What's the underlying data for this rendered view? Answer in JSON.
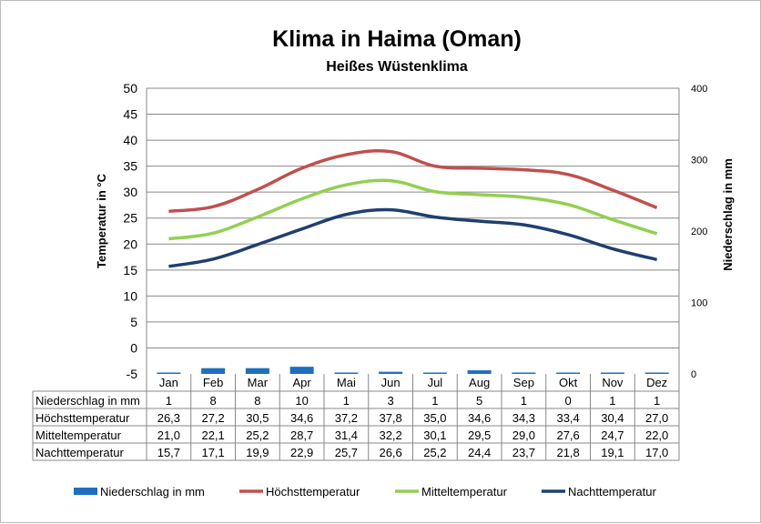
{
  "chart_data": {
    "type": "bar+line",
    "title": "Klima in Haima (Oman)",
    "subtitle": "Heißes Wüstenklima",
    "ylabel_left": "Temperatur in °C",
    "ylabel_right": "Niederschlag in mm",
    "ylim_left": [
      -5,
      50
    ],
    "yticks_left": [
      "50",
      "45",
      "40",
      "35",
      "30",
      "25",
      "20",
      "15",
      "10",
      "5",
      "0",
      "-5"
    ],
    "ylim_right": [
      0,
      400
    ],
    "yticks_right": [
      "400",
      "300",
      "200",
      "100",
      "0"
    ],
    "grid": true,
    "legend_position": "bottom",
    "categories": [
      "Jan",
      "Feb",
      "Mar",
      "Apr",
      "Mai",
      "Jun",
      "Jul",
      "Aug",
      "Sep",
      "Okt",
      "Nov",
      "Dez"
    ],
    "series": [
      {
        "name": "Niederschlag in mm",
        "type": "bar",
        "axis": "right",
        "color": "#1f6fbf",
        "values": [
          1,
          8,
          8,
          10,
          1,
          3,
          1,
          5,
          1,
          0,
          1,
          1
        ],
        "labels": [
          "1",
          "8",
          "8",
          "10",
          "1",
          "3",
          "1",
          "5",
          "1",
          "0",
          "1",
          "1"
        ]
      },
      {
        "name": "Höchsttemperatur",
        "type": "line",
        "axis": "left",
        "color": "#c0504d",
        "values": [
          26.3,
          27.2,
          30.5,
          34.6,
          37.2,
          37.8,
          35.0,
          34.6,
          34.3,
          33.4,
          30.4,
          27.0
        ],
        "labels": [
          "26,3",
          "27,2",
          "30,5",
          "34,6",
          "37,2",
          "37,8",
          "35,0",
          "34,6",
          "34,3",
          "33,4",
          "30,4",
          "27,0"
        ]
      },
      {
        "name": "Mitteltemperatur",
        "type": "line",
        "axis": "left",
        "color": "#92d050",
        "values": [
          21.0,
          22.1,
          25.2,
          28.7,
          31.4,
          32.2,
          30.1,
          29.5,
          29.0,
          27.6,
          24.7,
          22.0
        ],
        "labels": [
          "21,0",
          "22,1",
          "25,2",
          "28,7",
          "31,4",
          "32,2",
          "30,1",
          "29,5",
          "29,0",
          "27,6",
          "24,7",
          "22,0"
        ]
      },
      {
        "name": "Nachttemperatur",
        "type": "line",
        "axis": "left",
        "color": "#1f3f6f",
        "values": [
          15.7,
          17.1,
          19.9,
          22.9,
          25.7,
          26.6,
          25.2,
          24.4,
          23.7,
          21.8,
          19.1,
          17.0
        ],
        "labels": [
          "15,7",
          "17,1",
          "19,9",
          "22,9",
          "25,7",
          "26,6",
          "25,2",
          "24,4",
          "23,7",
          "21,8",
          "19,1",
          "17,0"
        ]
      }
    ]
  }
}
